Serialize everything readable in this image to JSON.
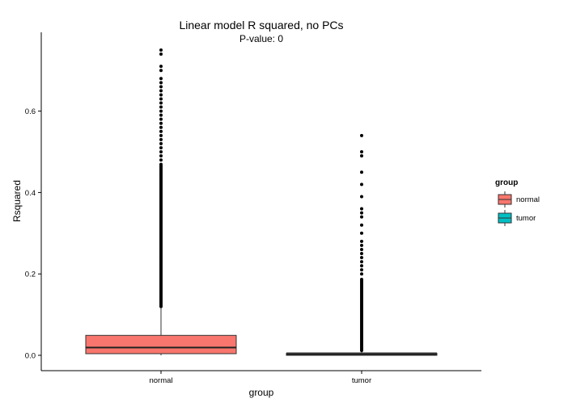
{
  "chart_data": {
    "type": "boxplot",
    "title": "Linear model R squared, no PCs",
    "subtitle": "P-value: 0",
    "xlabel": "group",
    "ylabel": "Rsquared",
    "ylim": [
      -0.04,
      0.77
    ],
    "y_ticks": [
      0.0,
      0.2,
      0.4,
      0.6
    ],
    "y_tick_labels": [
      "0.0",
      "0.2",
      "0.4",
      "0.6"
    ],
    "categories": [
      "normal",
      "tumor"
    ],
    "legend": {
      "title": "group",
      "placement": "right",
      "entries": [
        {
          "label": "normal",
          "color": "#F8766D"
        },
        {
          "label": "tumor",
          "color": "#00BFC4"
        }
      ]
    },
    "series": [
      {
        "name": "normal",
        "color": "#F8766D",
        "min": 0.0,
        "q1": 0.004,
        "median": 0.019,
        "q3": 0.049,
        "whisker_high": 0.12,
        "outliers_dense_range": [
          0.12,
          0.47
        ],
        "outliers": [
          0.48,
          0.49,
          0.5,
          0.51,
          0.52,
          0.53,
          0.54,
          0.55,
          0.56,
          0.57,
          0.58,
          0.59,
          0.6,
          0.61,
          0.62,
          0.63,
          0.64,
          0.65,
          0.66,
          0.67,
          0.68,
          0.7,
          0.71,
          0.74,
          0.75
        ]
      },
      {
        "name": "tumor",
        "color": "#00BFC4",
        "min": 0.0,
        "q1": 0.0,
        "median": 0.002,
        "q3": 0.005,
        "whisker_high": 0.012,
        "outliers_dense_range": [
          0.012,
          0.19
        ],
        "outliers": [
          0.2,
          0.21,
          0.22,
          0.23,
          0.24,
          0.25,
          0.26,
          0.27,
          0.28,
          0.3,
          0.32,
          0.34,
          0.35,
          0.36,
          0.39,
          0.42,
          0.45,
          0.49,
          0.5,
          0.54
        ]
      }
    ]
  }
}
